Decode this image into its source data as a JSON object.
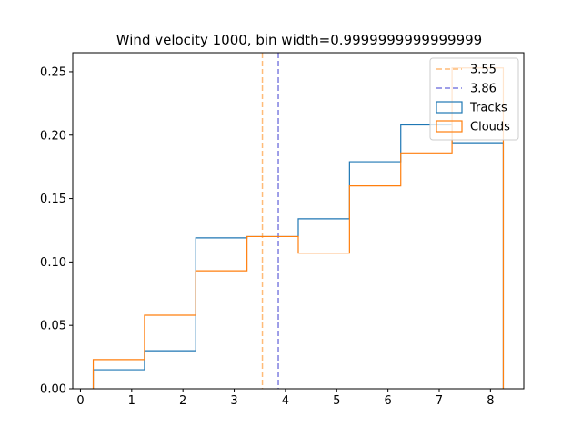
{
  "chart_data": {
    "type": "histogram",
    "title": "Wind velocity 1000, bin width=0.9999999999999999",
    "xlabel": "",
    "ylabel": "",
    "xlim": [
      -0.15,
      8.65
    ],
    "ylim": [
      0,
      0.265
    ],
    "xticks": [
      0,
      1,
      2,
      3,
      4,
      5,
      6,
      7,
      8
    ],
    "yticks": [
      "0.00",
      "0.05",
      "0.10",
      "0.15",
      "0.20",
      "0.25"
    ],
    "grid": false,
    "legend_position": "top-right",
    "bin_edges": [
      0.25,
      1.25,
      2.25,
      3.25,
      4.25,
      5.25,
      6.25,
      7.25,
      8.25
    ],
    "series": [
      {
        "name": "Tracks",
        "color": "#1f77b4",
        "values": [
          0.015,
          0.03,
          0.119,
          0.12,
          0.134,
          0.179,
          0.208,
          0.194
        ]
      },
      {
        "name": "Clouds",
        "color": "#ff7f0e",
        "values": [
          0.023,
          0.058,
          0.093,
          0.12,
          0.107,
          0.16,
          0.186,
          0.253
        ]
      }
    ],
    "reference_lines": [
      {
        "label": "3.55",
        "x": 3.55,
        "color": "#ffbb78"
      },
      {
        "label": "3.86",
        "x": 3.86,
        "color": "#7f7fe0"
      }
    ]
  }
}
